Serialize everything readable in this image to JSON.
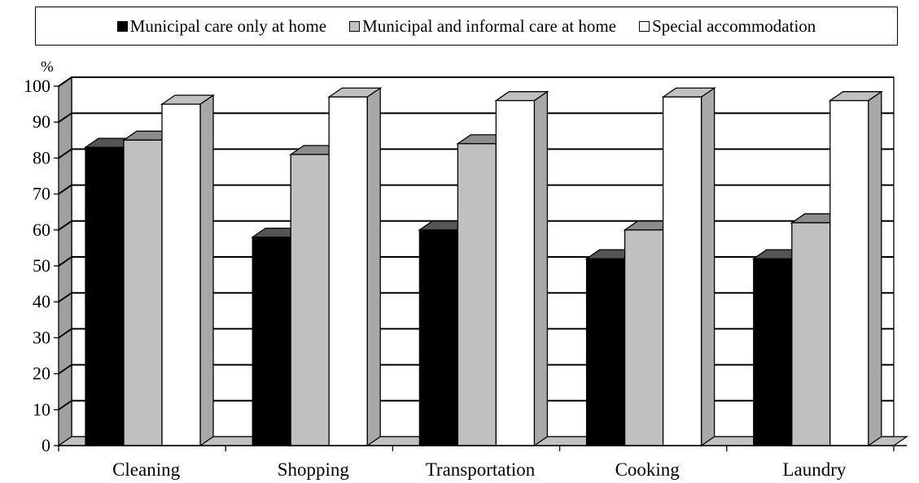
{
  "chart_data": {
    "type": "bar",
    "title": "",
    "ylabel": "%",
    "xlabel": "",
    "ylim": [
      0,
      100
    ],
    "yticks": [
      0,
      10,
      20,
      30,
      40,
      50,
      60,
      70,
      80,
      90,
      100
    ],
    "grid": true,
    "legend_position": "top",
    "categories": [
      "Cleaning",
      "Shopping",
      "Transportation",
      "Cooking",
      "Laundry"
    ],
    "series": [
      {
        "name": "Municipal care only at home",
        "color": "#000000",
        "values": [
          83,
          58,
          60,
          52,
          52
        ]
      },
      {
        "name": "Municipal and informal care at home",
        "color": "#c0c0c0",
        "values": [
          85,
          81,
          84,
          60,
          62
        ]
      },
      {
        "name": "Special accommodation",
        "color": "#ffffff",
        "values": [
          95,
          97,
          96,
          97,
          96
        ]
      }
    ]
  }
}
